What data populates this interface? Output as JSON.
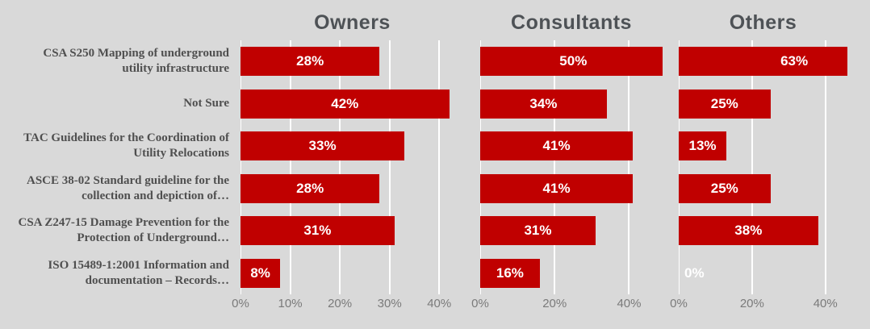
{
  "background_color": "#d9d9d9",
  "chart_data": {
    "type": "bar",
    "orientation": "horizontal",
    "grid": "vertical white gridlines at each tick",
    "legend": "none (panel titles act as series headers)",
    "bar_color": "#c00000",
    "bar_label_color": "#ffffff",
    "gridline_color": "#ffffff",
    "panel_title_color": "#4e5256",
    "category_label_color": "#4f4f4f",
    "tick_label_color": "#7a7a7a",
    "categories": [
      "CSA S250 Mapping of underground utility infrastructure",
      "Not Sure",
      "TAC Guidelines for the Coordination of Utility Relocations",
      "ASCE 38-02 Standard guideline for the collection and depiction of…",
      "CSA Z247-15 Damage Prevention for the Protection of Underground…",
      "ISO 15489-1:2001 Information and documentation – Records…"
    ],
    "series": [
      {
        "name": "Owners",
        "values": [
          28,
          42,
          33,
          28,
          31,
          8
        ],
        "labels": [
          "28%",
          "42%",
          "33%",
          "28%",
          "31%",
          "8%"
        ],
        "axis_max": 45,
        "ticks": [
          {
            "value": 0,
            "label": "0%"
          },
          {
            "value": 10,
            "label": "10%"
          },
          {
            "value": 20,
            "label": "20%"
          },
          {
            "value": 30,
            "label": "30%"
          },
          {
            "value": 40,
            "label": "40%"
          }
        ]
      },
      {
        "name": "Consultants",
        "values": [
          50,
          34,
          41,
          41,
          31,
          16
        ],
        "labels": [
          "50%",
          "34%",
          "41%",
          "41%",
          "31%",
          "16%"
        ],
        "axis_max": 49,
        "ticks": [
          {
            "value": 0,
            "label": "0%"
          },
          {
            "value": 20,
            "label": "20%"
          },
          {
            "value": 40,
            "label": "40%"
          }
        ]
      },
      {
        "name": "Others",
        "values": [
          63,
          25,
          13,
          25,
          38,
          0
        ],
        "labels": [
          "63%",
          "25%",
          "13%",
          "25%",
          "38%",
          "0%"
        ],
        "axis_max": 46,
        "ticks": [
          {
            "value": 0,
            "label": "0%"
          },
          {
            "value": 20,
            "label": "20%"
          },
          {
            "value": 40,
            "label": "40%"
          }
        ]
      }
    ]
  }
}
